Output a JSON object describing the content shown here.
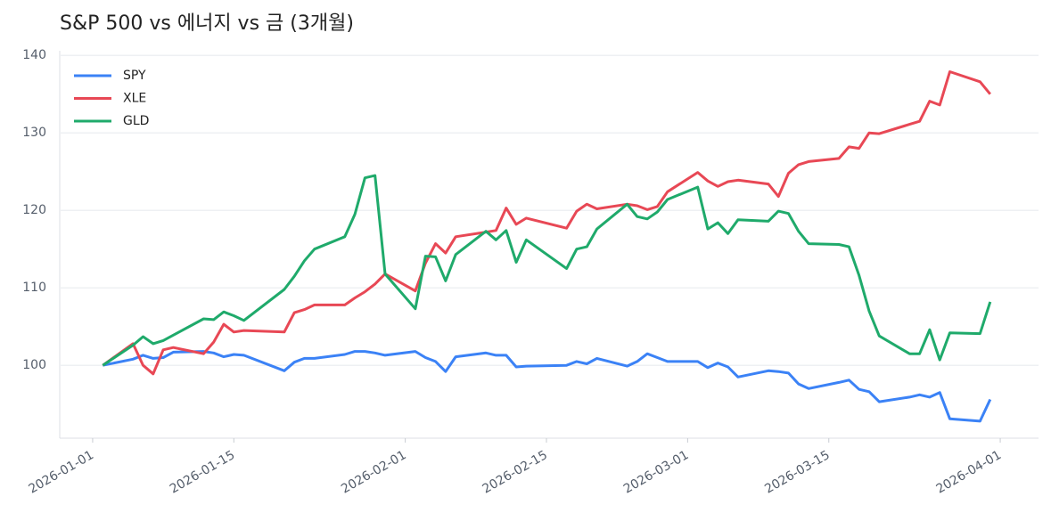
{
  "chart_data": {
    "type": "line",
    "title": "S&P 500 vs 에너지 vs 금 (3개월)",
    "x": [
      "2026-01-02",
      "2026-01-05",
      "2026-01-06",
      "2026-01-07",
      "2026-01-08",
      "2026-01-09",
      "2026-01-12",
      "2026-01-13",
      "2026-01-14",
      "2026-01-15",
      "2026-01-16",
      "2026-01-20",
      "2026-01-21",
      "2026-01-22",
      "2026-01-23",
      "2026-01-26",
      "2026-01-27",
      "2026-01-28",
      "2026-01-29",
      "2026-01-30",
      "2026-02-02",
      "2026-02-03",
      "2026-02-04",
      "2026-02-05",
      "2026-02-06",
      "2026-02-09",
      "2026-02-10",
      "2026-02-11",
      "2026-02-12",
      "2026-02-13",
      "2026-02-17",
      "2026-02-18",
      "2026-02-19",
      "2026-02-20",
      "2026-02-23",
      "2026-02-24",
      "2026-02-25",
      "2026-02-26",
      "2026-02-27",
      "2026-03-02",
      "2026-03-03",
      "2026-03-04",
      "2026-03-05",
      "2026-03-06",
      "2026-03-09",
      "2026-03-10",
      "2026-03-11",
      "2026-03-12",
      "2026-03-13",
      "2026-03-16",
      "2026-03-17",
      "2026-03-18",
      "2026-03-19",
      "2026-03-20",
      "2026-03-23",
      "2026-03-24",
      "2026-03-25",
      "2026-03-26",
      "2026-03-27",
      "2026-03-30",
      "2026-03-31"
    ],
    "series": [
      {
        "name": "SPY",
        "color": "#3b82f6",
        "values": [
          100,
          100.8,
          101.3,
          100.9,
          101.0,
          101.7,
          101.8,
          101.6,
          101.1,
          101.4,
          101.3,
          99.3,
          100.4,
          100.9,
          100.9,
          101.4,
          101.8,
          101.8,
          101.6,
          101.3,
          101.8,
          101.0,
          100.5,
          99.2,
          101.1,
          101.6,
          101.3,
          101.3,
          99.8,
          99.9,
          100.0,
          100.5,
          100.2,
          100.9,
          99.9,
          100.5,
          101.5,
          101.0,
          100.5,
          100.5,
          99.7,
          100.3,
          99.8,
          98.5,
          99.3,
          99.2,
          99.0,
          97.6,
          97.0,
          97.8,
          98.1,
          96.9,
          96.6,
          95.3,
          95.9,
          96.2,
          95.9,
          96.5,
          93.1,
          92.8,
          95.6
        ]
      },
      {
        "name": "XLE",
        "color": "#e84855",
        "values": [
          100,
          102.8,
          100.0,
          98.9,
          102.0,
          102.3,
          101.5,
          103.0,
          105.3,
          104.3,
          104.5,
          104.3,
          106.8,
          107.2,
          107.8,
          107.8,
          108.7,
          109.5,
          110.5,
          111.8,
          109.6,
          113.2,
          115.7,
          114.5,
          116.6,
          117.2,
          117.4,
          120.3,
          118.2,
          119.0,
          117.7,
          119.9,
          120.8,
          120.2,
          120.8,
          120.6,
          120.1,
          120.5,
          122.4,
          124.9,
          123.8,
          123.1,
          123.7,
          123.9,
          123.4,
          121.8,
          124.8,
          125.9,
          126.3,
          126.7,
          128.2,
          128.0,
          130.0,
          129.9,
          131.1,
          131.5,
          134.1,
          133.6,
          137.9,
          136.6,
          135.0
        ]
      },
      {
        "name": "GLD",
        "color": "#1faa6b",
        "values": [
          100,
          102.6,
          103.7,
          102.8,
          103.2,
          103.9,
          106.0,
          105.9,
          106.9,
          106.4,
          105.8,
          109.8,
          111.5,
          113.5,
          115.0,
          116.6,
          119.5,
          124.2,
          124.5,
          111.8,
          107.3,
          114.1,
          114.0,
          110.9,
          114.3,
          117.3,
          116.2,
          117.4,
          113.3,
          116.2,
          112.5,
          115.0,
          115.3,
          117.6,
          120.8,
          119.2,
          118.9,
          119.8,
          121.4,
          123.0,
          117.6,
          118.4,
          117.0,
          118.8,
          118.6,
          119.9,
          119.6,
          117.3,
          115.7,
          115.6,
          115.3,
          111.6,
          107.0,
          103.8,
          101.5,
          101.5,
          104.6,
          100.7,
          104.2,
          104.1,
          108.2
        ]
      }
    ],
    "xlim": [
      "2025-12-29",
      "2026-04-04"
    ],
    "xticks": [
      "2026-01-01",
      "2026-01-15",
      "2026-02-01",
      "2026-02-15",
      "2026-03-01",
      "2026-03-15",
      "2026-04-01"
    ],
    "ylim": [
      90.6,
      140.6
    ],
    "yticks": [
      100,
      110,
      120,
      130,
      140
    ],
    "grid": true,
    "legend": "upper-left"
  }
}
